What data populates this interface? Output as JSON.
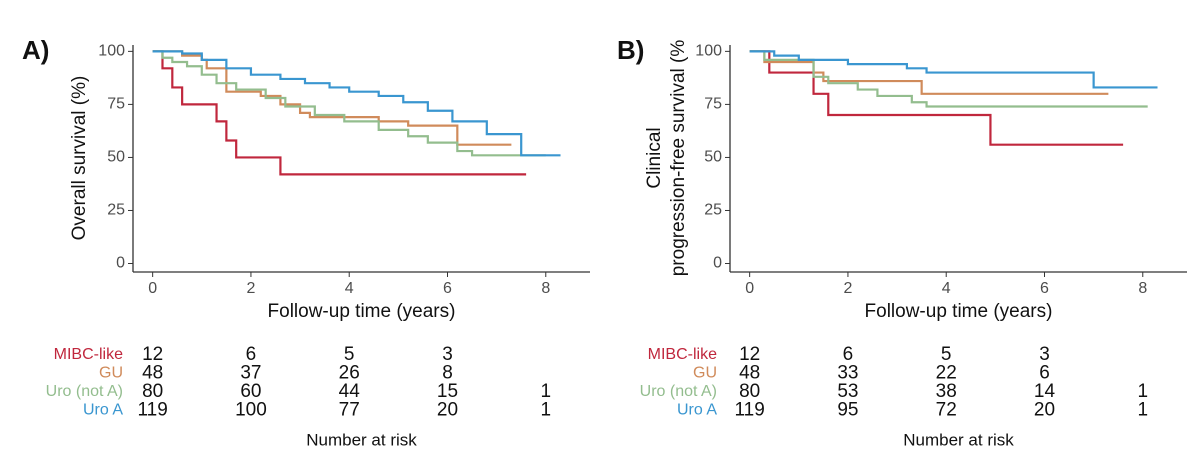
{
  "chart_data": [
    {
      "type": "step",
      "label": "A)",
      "ylabel": [
        "Overall survival (%)"
      ],
      "xlabel": "Follow-up time (years)",
      "xlim": [
        -0.4,
        8.9
      ],
      "ylim": [
        -4,
        103
      ],
      "xticks": [
        0,
        2,
        4,
        6,
        8
      ],
      "yticks": [
        0,
        25,
        50,
        75,
        100
      ],
      "risk_title": "Number at risk",
      "series": [
        {
          "name": "MIBC-like",
          "color": "#c0273d",
          "x": [
            0,
            0.2,
            0.4,
            0.6,
            1.3,
            1.5,
            1.7,
            2.6,
            7.6
          ],
          "values": [
            100,
            92,
            83,
            75,
            67,
            58,
            50,
            42,
            42
          ],
          "at_risk": [
            12,
            6,
            5,
            3,
            null
          ]
        },
        {
          "name": "GU",
          "color": "#d08b5b",
          "x": [
            0,
            0.6,
            1.0,
            1.1,
            1.5,
            2.2,
            2.6,
            3.0,
            3.2,
            4.6,
            5.2,
            6.2,
            7.3
          ],
          "values": [
            100,
            98,
            96,
            92,
            81,
            79,
            75,
            71,
            69,
            67,
            65,
            56,
            56
          ],
          "at_risk": [
            48,
            37,
            26,
            8,
            null
          ]
        },
        {
          "name": "Uro (not A)",
          "color": "#93bd8e",
          "x": [
            0,
            0.2,
            0.4,
            0.7,
            1.0,
            1.3,
            1.7,
            2.3,
            2.7,
            3.3,
            3.9,
            4.6,
            5.2,
            5.6,
            6.2,
            6.5,
            8.0
          ],
          "values": [
            100,
            97,
            95,
            93,
            89,
            85,
            82,
            78,
            74,
            70,
            67,
            63,
            60,
            57,
            53,
            51,
            51
          ],
          "at_risk": [
            80,
            60,
            44,
            15,
            1
          ]
        },
        {
          "name": "Uro A",
          "color": "#3a96d0",
          "x": [
            0,
            0.6,
            1.0,
            1.5,
            2.0,
            2.6,
            3.1,
            3.6,
            4.0,
            4.6,
            5.1,
            5.6,
            6.1,
            6.8,
            7.5,
            8.3
          ],
          "values": [
            100,
            99,
            96,
            92,
            89,
            87,
            85,
            83,
            81,
            79,
            76,
            72,
            67,
            61,
            51,
            51
          ],
          "at_risk": [
            119,
            100,
            77,
            20,
            1
          ]
        }
      ]
    },
    {
      "type": "step",
      "label": "B)",
      "ylabel": [
        "Clinical",
        "progression-free survival (%"
      ],
      "xlabel": "Follow-up time (years)",
      "xlim": [
        -0.4,
        8.9
      ],
      "ylim": [
        -4,
        103
      ],
      "xticks": [
        0,
        2,
        4,
        6,
        8
      ],
      "yticks": [
        0,
        25,
        50,
        75,
        100
      ],
      "risk_title": "Number at risk",
      "series": [
        {
          "name": "MIBC-like",
          "color": "#c0273d",
          "x": [
            0,
            0.4,
            1.3,
            1.6,
            4.9,
            7.6
          ],
          "values": [
            100,
            90,
            80,
            70,
            56,
            56
          ],
          "at_risk": [
            12,
            6,
            5,
            3,
            null
          ]
        },
        {
          "name": "GU",
          "color": "#d08b5b",
          "x": [
            0,
            0.3,
            1.3,
            1.5,
            3.5,
            7.3
          ],
          "values": [
            100,
            95,
            90,
            86,
            80,
            80
          ],
          "at_risk": [
            48,
            33,
            22,
            6,
            null
          ]
        },
        {
          "name": "Uro (not A)",
          "color": "#93bd8e",
          "x": [
            0,
            0.3,
            1.3,
            1.6,
            2.2,
            2.6,
            3.3,
            3.6,
            8.1
          ],
          "values": [
            100,
            96,
            88,
            85,
            82,
            79,
            76,
            74,
            74
          ],
          "at_risk": [
            80,
            53,
            38,
            14,
            1
          ]
        },
        {
          "name": "Uro A",
          "color": "#3a96d0",
          "x": [
            0,
            0.5,
            1.0,
            2.0,
            3.2,
            3.6,
            7.0,
            8.3
          ],
          "values": [
            100,
            98,
            96,
            94,
            92,
            90,
            83,
            83
          ],
          "at_risk": [
            119,
            95,
            72,
            20,
            1
          ]
        }
      ]
    }
  ]
}
